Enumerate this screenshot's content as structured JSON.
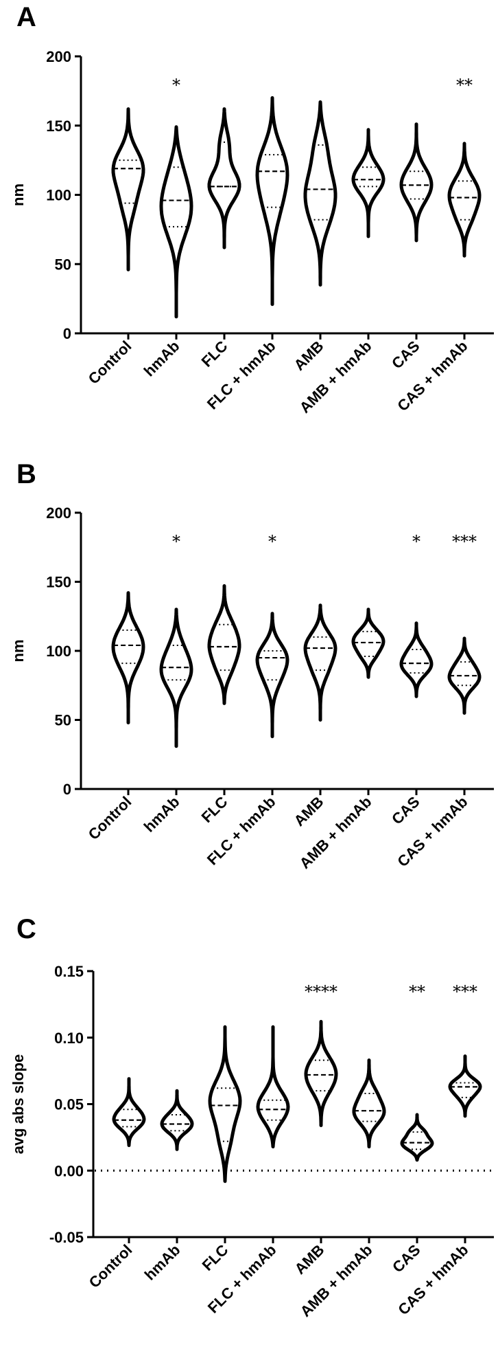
{
  "figure": {
    "categories": [
      "Control",
      "hmAb",
      "FLC",
      "FLC + hmAb",
      "AMB",
      "AMB + hmAb",
      "CAS",
      "CAS + hmAb"
    ]
  },
  "chart_data": [
    {
      "type": "violin",
      "panel": "A",
      "ylabel": "nm",
      "ylim": [
        0,
        200
      ],
      "yticks": [
        "0",
        "50",
        "100",
        "150",
        "200"
      ],
      "categories": [
        "Control",
        "hmAb",
        "FLC",
        "FLC + hmAb",
        "AMB",
        "AMB + hmAb",
        "CAS",
        "CAS + hmAb"
      ],
      "series": [
        {
          "category": "Control",
          "min": 46,
          "max": 162,
          "q1": 94,
          "median": 119,
          "q3": 125,
          "significance": ""
        },
        {
          "category": "hmAb",
          "min": 12,
          "max": 149,
          "q1": 77,
          "median": 96,
          "q3": 120,
          "significance": "*"
        },
        {
          "category": "FLC",
          "min": 62,
          "max": 162,
          "q1": 106,
          "median": 106,
          "q3": 138,
          "significance": ""
        },
        {
          "category": "FLC + hmAb",
          "min": 21,
          "max": 170,
          "q1": 91,
          "median": 117,
          "q3": 129,
          "significance": ""
        },
        {
          "category": "AMB",
          "min": 35,
          "max": 167,
          "q1": 82,
          "median": 104,
          "q3": 136,
          "significance": ""
        },
        {
          "category": "AMB + hmAb",
          "min": 70,
          "max": 147,
          "q1": 106,
          "median": 111,
          "q3": 120,
          "significance": ""
        },
        {
          "category": "CAS",
          "min": 67,
          "max": 151,
          "q1": 97,
          "median": 107,
          "q3": 117,
          "significance": ""
        },
        {
          "category": "CAS + hmAb",
          "min": 56,
          "max": 137,
          "q1": 82,
          "median": 98,
          "q3": 110,
          "significance": "**"
        }
      ]
    },
    {
      "type": "violin",
      "panel": "B",
      "ylabel": "nm",
      "ylim": [
        0,
        200
      ],
      "yticks": [
        "0",
        "50",
        "100",
        "150",
        "200"
      ],
      "categories": [
        "Control",
        "hmAb",
        "FLC",
        "FLC + hmAb",
        "AMB",
        "AMB + hmAb",
        "CAS",
        "CAS + hmAb"
      ],
      "series": [
        {
          "category": "Control",
          "min": 48,
          "max": 142,
          "q1": 91,
          "median": 104,
          "q3": 115,
          "significance": ""
        },
        {
          "category": "hmAb",
          "min": 31,
          "max": 130,
          "q1": 79,
          "median": 88,
          "q3": 104,
          "significance": "*"
        },
        {
          "category": "FLC",
          "min": 62,
          "max": 147,
          "q1": 86,
          "median": 103,
          "q3": 119,
          "significance": ""
        },
        {
          "category": "FLC + hmAb",
          "min": 38,
          "max": 127,
          "q1": 79,
          "median": 95,
          "q3": 100,
          "significance": "*"
        },
        {
          "category": "AMB",
          "min": 50,
          "max": 133,
          "q1": 86,
          "median": 102,
          "q3": 110,
          "significance": ""
        },
        {
          "category": "AMB + hmAb",
          "min": 81,
          "max": 130,
          "q1": 96,
          "median": 106,
          "q3": 114,
          "significance": ""
        },
        {
          "category": "CAS",
          "min": 67,
          "max": 120,
          "q1": 84,
          "median": 91,
          "q3": 101,
          "significance": "*"
        },
        {
          "category": "CAS + hmAb",
          "min": 55,
          "max": 109,
          "q1": 75,
          "median": 82,
          "q3": 92,
          "significance": "***"
        }
      ]
    },
    {
      "type": "violin",
      "panel": "C",
      "ylabel": "avg abs slope",
      "ylim": [
        -0.05,
        0.15
      ],
      "yticks": [
        "-0.05",
        "0.00",
        "0.05",
        "0.10",
        "0.15"
      ],
      "reference_line": 0,
      "categories": [
        "Control",
        "hmAb",
        "FLC",
        "FLC + hmAb",
        "AMB",
        "AMB + hmAb",
        "CAS",
        "CAS + hmAb"
      ],
      "series": [
        {
          "category": "Control",
          "min": 0.019,
          "max": 0.069,
          "q1": 0.033,
          "median": 0.038,
          "q3": 0.046,
          "significance": ""
        },
        {
          "category": "hmAb",
          "min": 0.016,
          "max": 0.06,
          "q1": 0.03,
          "median": 0.035,
          "q3": 0.042,
          "significance": ""
        },
        {
          "category": "FLC",
          "min": -0.008,
          "max": 0.108,
          "q1": 0.022,
          "median": 0.049,
          "q3": 0.062,
          "significance": ""
        },
        {
          "category": "FLC + hmAb",
          "min": 0.018,
          "max": 0.108,
          "q1": 0.038,
          "median": 0.046,
          "q3": 0.053,
          "significance": ""
        },
        {
          "category": "AMB",
          "min": 0.034,
          "max": 0.112,
          "q1": 0.06,
          "median": 0.072,
          "q3": 0.083,
          "significance": "****"
        },
        {
          "category": "AMB + hmAb",
          "min": 0.018,
          "max": 0.083,
          "q1": 0.037,
          "median": 0.045,
          "q3": 0.058,
          "significance": ""
        },
        {
          "category": "CAS",
          "min": 0.008,
          "max": 0.042,
          "q1": 0.016,
          "median": 0.021,
          "q3": 0.029,
          "significance": "**"
        },
        {
          "category": "CAS + hmAb",
          "min": 0.041,
          "max": 0.086,
          "q1": 0.055,
          "median": 0.063,
          "q3": 0.066,
          "significance": "***"
        }
      ]
    }
  ]
}
